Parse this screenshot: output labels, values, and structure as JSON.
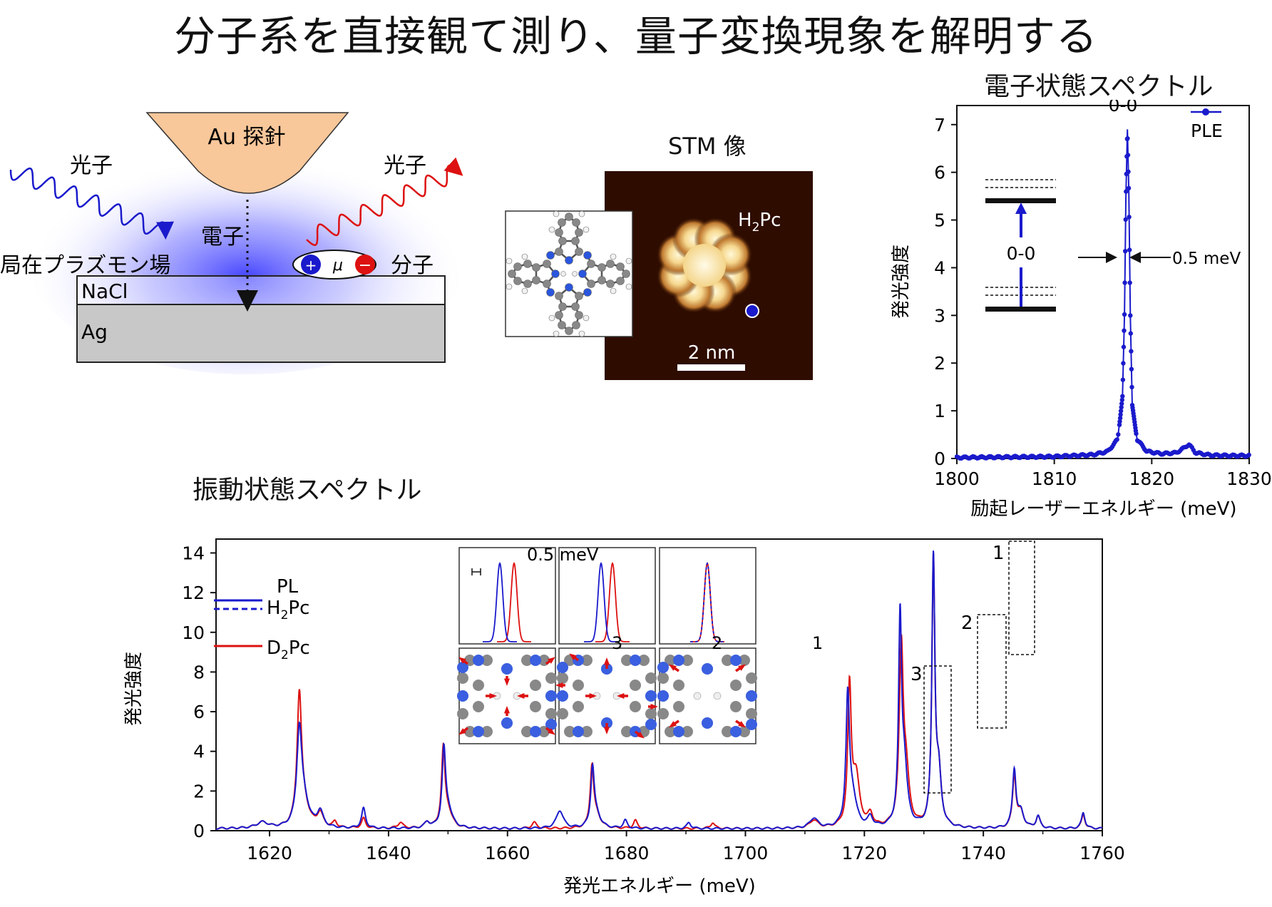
{
  "title": "分子系を直接観て測り、量子変換現象を解明する",
  "colors": {
    "blue": "#1a1acc",
    "red": "#dd1111",
    "tip": "#f8c79a",
    "substrate": "#c8c8c8"
  },
  "schematic": {
    "tip_label": "Au 探針",
    "photon_in_label": "光子",
    "photon_out_label": "光子",
    "electron_label": "電子",
    "plasmon_label": "局在プラズモン場",
    "molecule_label": "分子",
    "dipole_symbol": "μ",
    "plus": "+",
    "minus": "−",
    "nacl_label": "NaCl",
    "ag_label": "Ag"
  },
  "stm": {
    "title": "STM 像",
    "molecule_label_main": "H",
    "molecule_label_sub": "2",
    "molecule_label_tail": "Pc",
    "scalebar_label": "2 nm"
  },
  "ple_chart": {
    "title": "電子状態スペクトル",
    "ylabel": "発光強度",
    "xlabel": "励起レーザーエネルギー (meV)",
    "legend": "PLE",
    "peak_label": "0-0",
    "level_label": "0-0",
    "width_label": "0.5 meV",
    "x_ticks": [
      "1800",
      "1810",
      "1820",
      "1830"
    ],
    "y_ticks": [
      "0",
      "1",
      "2",
      "3",
      "4",
      "5",
      "6",
      "7"
    ]
  },
  "pl_chart": {
    "title": "振動状態スペクトル",
    "ylabel": "発光強度",
    "xlabel": "発光エネルギー (meV)",
    "legend_title": "PL",
    "legend_h2pc_main": "H",
    "legend_h2pc_sub": "2",
    "legend_h2pc_tail": "Pc",
    "legend_d2pc_main": "D",
    "legend_d2pc_sub": "2",
    "legend_d2pc_tail": "Pc",
    "x_ticks": [
      "1620",
      "1640",
      "1660",
      "1680",
      "1700",
      "1720",
      "1740",
      "1760"
    ],
    "y_ticks": [
      "0",
      "2",
      "4",
      "6",
      "8",
      "10",
      "12",
      "14"
    ],
    "box_labels": [
      "3",
      "2",
      "1"
    ],
    "inset_scale": "0.5 meV",
    "inset_labels": [
      "3",
      "2",
      "1"
    ]
  },
  "chart_data": [
    {
      "type": "line",
      "title": "電子状態スペクトル",
      "xlabel": "励起レーザーエネルギー (meV)",
      "ylabel": "発光強度",
      "xlim": [
        1800,
        1830
      ],
      "ylim": [
        0,
        7.4
      ],
      "series": [
        {
          "name": "PLE",
          "x": [
            1800,
            1805,
            1810,
            1814,
            1815.5,
            1816.5,
            1817.0,
            1817.2,
            1817.35,
            1817.5,
            1817.65,
            1817.8,
            1818.0,
            1818.5,
            1819.5,
            1821,
            1822.5,
            1823.3,
            1823.8,
            1824.5,
            1826,
            1828,
            1830
          ],
          "y": [
            0.02,
            0.03,
            0.04,
            0.08,
            0.15,
            0.4,
            1.3,
            3.0,
            5.5,
            6.9,
            5.6,
            3.0,
            1.1,
            0.4,
            0.15,
            0.1,
            0.12,
            0.22,
            0.3,
            0.12,
            0.07,
            0.06,
            0.06
          ]
        }
      ]
    },
    {
      "type": "line",
      "title": "振動状態スペクトル",
      "xlabel": "発光エネルギー (meV)",
      "ylabel": "発光強度",
      "xlim": [
        1611,
        1760
      ],
      "ylim": [
        0,
        14.7
      ],
      "baseline": 0.1,
      "series": [
        {
          "name": "H2Pc",
          "peaks": [
            [
              1618.8,
              0.3,
              1.2
            ],
            [
              1625,
              4.6,
              0.5
            ],
            [
              1625.8,
              1.2,
              1.0
            ],
            [
              1628.5,
              0.8,
              0.6
            ],
            [
              1635.8,
              1.0,
              0.4
            ],
            [
              1646.5,
              0.3,
              0.5
            ],
            [
              1649.3,
              3.7,
              0.35
            ],
            [
              1650,
              0.9,
              0.8
            ],
            [
              1668.8,
              0.9,
              0.7
            ],
            [
              1674.3,
              2.9,
              0.35
            ],
            [
              1675,
              0.6,
              0.8
            ],
            [
              1679.8,
              0.4,
              0.4
            ],
            [
              1690.5,
              0.3,
              0.4
            ],
            [
              1711.5,
              0.5,
              0.8
            ],
            [
              1717.2,
              6.3,
              0.35
            ],
            [
              1718,
              1.5,
              0.8
            ],
            [
              1721,
              0.5,
              0.5
            ],
            [
              1726,
              10.0,
              0.3
            ],
            [
              1726.7,
              3.0,
              0.6
            ],
            [
              1731.6,
              13.4,
              0.3
            ],
            [
              1732.5,
              2.5,
              0.5
            ],
            [
              1745.2,
              2.9,
              0.35
            ],
            [
              1746.3,
              0.8,
              0.6
            ],
            [
              1749.2,
              0.6,
              0.4
            ],
            [
              1756.8,
              0.8,
              0.35
            ]
          ]
        },
        {
          "name": "D2Pc",
          "peaks": [
            [
              1618.8,
              0.3,
              1.2
            ],
            [
              1625,
              6.4,
              0.45
            ],
            [
              1625.8,
              1.0,
              1.0
            ],
            [
              1628.5,
              0.7,
              0.6
            ],
            [
              1631,
              0.3,
              0.4
            ],
            [
              1635.8,
              0.5,
              0.4
            ],
            [
              1642,
              0.3,
              0.5
            ],
            [
              1646.5,
              0.3,
              0.5
            ],
            [
              1649.2,
              3.8,
              0.35
            ],
            [
              1650,
              0.8,
              0.8
            ],
            [
              1664.5,
              0.3,
              0.5
            ],
            [
              1674.2,
              3.0,
              0.35
            ],
            [
              1675,
              0.6,
              0.8
            ],
            [
              1681.5,
              0.4,
              0.4
            ],
            [
              1694.5,
              0.3,
              0.4
            ],
            [
              1711.5,
              0.4,
              0.8
            ],
            [
              1717.5,
              6.9,
              0.35
            ],
            [
              1718.6,
              2.5,
              0.7
            ],
            [
              1721,
              0.6,
              0.5
            ],
            [
              1726.2,
              8.8,
              0.4
            ],
            [
              1727,
              2.5,
              0.6
            ],
            [
              1731.6,
              13.3,
              0.3
            ],
            [
              1732.5,
              2.5,
              0.5
            ],
            [
              1745.2,
              2.6,
              0.35
            ],
            [
              1746.3,
              0.8,
              0.6
            ],
            [
              1749.2,
              0.6,
              0.4
            ],
            [
              1756.8,
              0.7,
              0.35
            ]
          ]
        }
      ]
    }
  ]
}
